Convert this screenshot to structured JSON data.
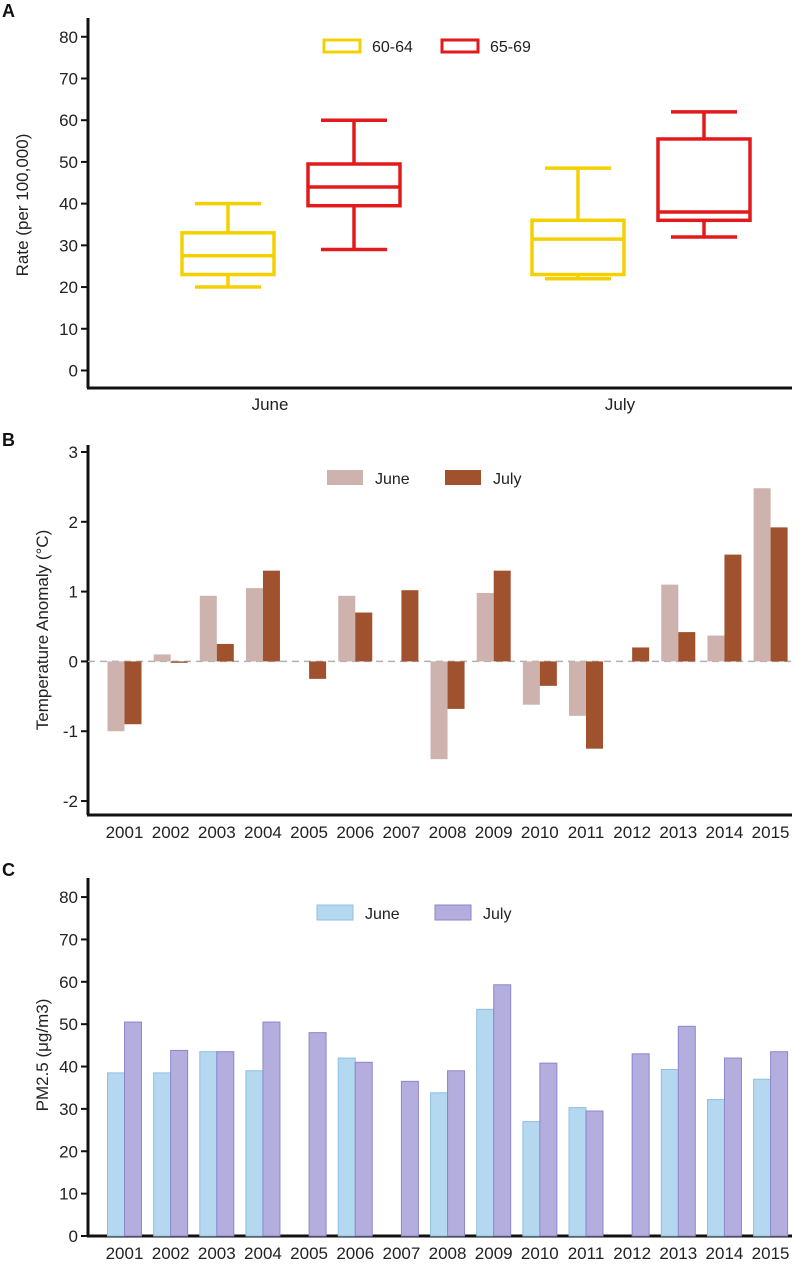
{
  "chart_data": [
    {
      "panel": "A",
      "type": "box",
      "ylabel": "Rate (per 100,000)",
      "ylim": [
        0,
        80
      ],
      "yticks": [
        0,
        10,
        20,
        30,
        40,
        50,
        60,
        70,
        80
      ],
      "categories": [
        "June",
        "July"
      ],
      "legend_position": "top-center",
      "series": [
        {
          "name": "60-64",
          "color": "#f5d000",
          "boxes": [
            {
              "min": 20,
              "q1": 23,
              "median": 27.5,
              "q3": 33,
              "max": 40
            },
            {
              "min": 22,
              "q1": 23,
              "median": 31.5,
              "q3": 36,
              "max": 48.5
            }
          ]
        },
        {
          "name": "65-69",
          "color": "#e31a1c",
          "boxes": [
            {
              "min": 29,
              "q1": 39.5,
              "median": 44,
              "q3": 49.5,
              "max": 60
            },
            {
              "min": 32,
              "q1": 36,
              "median": 38,
              "q3": 55.5,
              "max": 62
            }
          ]
        }
      ]
    },
    {
      "panel": "B",
      "type": "bar",
      "ylabel": "Temperature Anomaly (°C)",
      "ylim": [
        -2.2,
        3.1
      ],
      "yticks": [
        -2,
        -1,
        0,
        1,
        2,
        3
      ],
      "zero_line": "dashed",
      "legend_position": "top-center",
      "categories": [
        "2001",
        "2002",
        "2003",
        "2004",
        "2005",
        "2006",
        "2007",
        "2008",
        "2009",
        "2010",
        "2011",
        "2012",
        "2013",
        "2014",
        "2015"
      ],
      "series": [
        {
          "name": "June",
          "color": "#cdb2ad",
          "values": [
            -1.0,
            0.1,
            0.94,
            1.05,
            0.0,
            0.94,
            0.0,
            -1.4,
            0.98,
            -0.62,
            -0.78,
            0.0,
            1.1,
            0.37,
            2.48
          ]
        },
        {
          "name": "July",
          "color": "#a0512d",
          "values": [
            -0.9,
            -0.02,
            0.25,
            1.3,
            -0.25,
            0.7,
            1.02,
            -0.68,
            1.3,
            -0.35,
            -1.25,
            0.2,
            0.42,
            1.53,
            1.92
          ]
        }
      ]
    },
    {
      "panel": "C",
      "type": "bar",
      "ylabel": "PM2.5 (μg/m3)",
      "ylim": [
        0,
        80
      ],
      "yticks": [
        0,
        10,
        20,
        30,
        40,
        50,
        60,
        70,
        80
      ],
      "legend_position": "top-center",
      "categories": [
        "2001",
        "2002",
        "2003",
        "2004",
        "2005",
        "2006",
        "2007",
        "2008",
        "2009",
        "2010",
        "2011",
        "2012",
        "2013",
        "2014",
        "2015"
      ],
      "series": [
        {
          "name": "June",
          "color": "#b4d8ef",
          "values": [
            38.5,
            38.5,
            43.5,
            39,
            0,
            42,
            0,
            33.8,
            53.5,
            27,
            30.3,
            0,
            39.3,
            32.2,
            37
          ]
        },
        {
          "name": "July",
          "color": "#b3aedd",
          "values": [
            50.5,
            43.8,
            43.5,
            50.5,
            48,
            41,
            36.5,
            39,
            59.3,
            40.8,
            29.5,
            43,
            49.5,
            42,
            43.5
          ]
        }
      ]
    }
  ]
}
